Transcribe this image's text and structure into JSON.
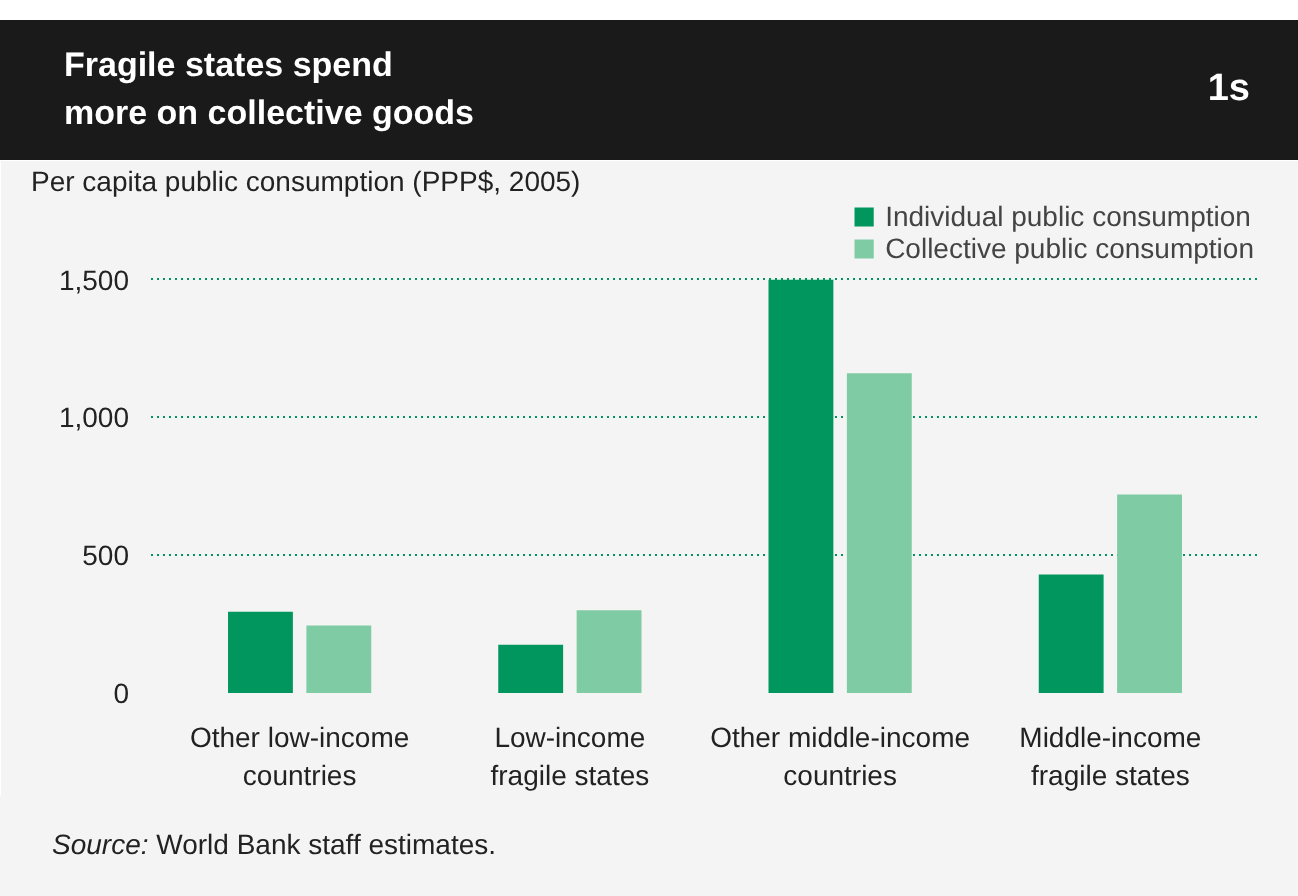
{
  "chart_data": {
    "type": "bar",
    "title": "Fragile states spend\nmore on collective goods",
    "annotations": [
      "1s",
      "Source: World Bank staff estimates."
    ],
    "ylabel": "Per capita public consumption (PPP$, 2005)",
    "categories": [
      "Other low-income\ncountries",
      "Low-income\nfragile states",
      "Other middle-income\ncountries",
      "Middle-income\nfragile states"
    ],
    "series": [
      {
        "name": "Individual public consumption",
        "color": "#00965e",
        "values": [
          295,
          175,
          1500,
          430
        ]
      },
      {
        "name": "Collective public consumption",
        "color": "#7fcba4",
        "values": [
          245,
          300,
          1160,
          720
        ]
      }
    ],
    "ylim": [
      0,
      1800
    ],
    "yticks": [
      0,
      500,
      {
        "value": 1000,
        "label": "1,000"
      },
      {
        "value": 1500,
        "label": "1,500"
      }
    ],
    "grid": "y",
    "legend": "top right"
  }
}
